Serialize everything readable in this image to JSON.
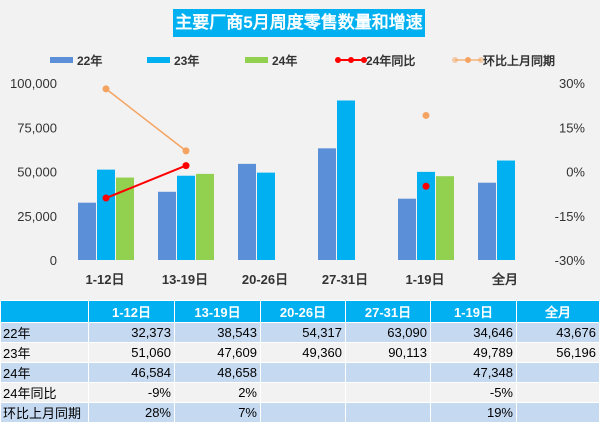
{
  "chart_data": {
    "type": "bar",
    "title": "主要厂商5月周度零售数量和增速",
    "categories": [
      "1-12日",
      "13-19日",
      "20-26日",
      "27-31日",
      "1-19日",
      "全月"
    ],
    "series": [
      {
        "name": "22年",
        "type": "bar",
        "color": "#5b8fd8",
        "values": [
          32373,
          38543,
          54317,
          63090,
          34646,
          43676
        ]
      },
      {
        "name": "23年",
        "type": "bar",
        "color": "#00b0f0",
        "values": [
          51060,
          47609,
          49360,
          90113,
          49789,
          56196
        ]
      },
      {
        "name": "24年",
        "type": "bar",
        "color": "#92d050",
        "values": [
          46584,
          48658,
          null,
          null,
          47348,
          null
        ]
      },
      {
        "name": "24年同比",
        "type": "line",
        "axis": "right",
        "color": "#ff0000",
        "values": [
          -9,
          2,
          null,
          null,
          -5,
          null
        ]
      },
      {
        "name": "环比上月同期",
        "type": "line",
        "axis": "right",
        "color": "#f4a460",
        "values": [
          28,
          7,
          null,
          null,
          19,
          null
        ]
      }
    ],
    "left_axis": {
      "ylim": [
        0,
        100000
      ],
      "ticks": [
        "0",
        "25,000",
        "50,000",
        "75,000",
        "100,000"
      ]
    },
    "right_axis": {
      "ylim": [
        -30,
        30
      ],
      "ticks": [
        "-30%",
        "-15%",
        "0%",
        "15%",
        "30%"
      ]
    },
    "legend": "top",
    "grid": false
  },
  "table": {
    "headers": [
      "",
      "1-12日",
      "13-19日",
      "20-26日",
      "27-31日",
      "1-19日",
      "全月"
    ],
    "rows": [
      [
        "22年",
        "32,373",
        "38,543",
        "54,317",
        "63,090",
        "34,646",
        "43,676"
      ],
      [
        "23年",
        "51,060",
        "47,609",
        "49,360",
        "90,113",
        "49,789",
        "56,196"
      ],
      [
        "24年",
        "46,584",
        "48,658",
        "",
        "",
        "47,348",
        ""
      ],
      [
        "24年同比",
        "-9%",
        "2%",
        "",
        "",
        "-5%",
        ""
      ],
      [
        "环比上月同期",
        "28%",
        "7%",
        "",
        "",
        "19%",
        ""
      ]
    ]
  }
}
